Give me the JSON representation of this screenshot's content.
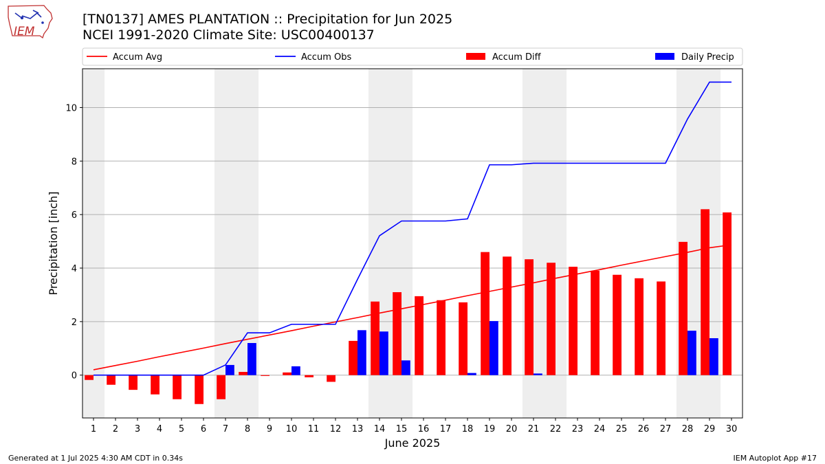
{
  "header": {
    "title_line1": "[TN0137] AMES PLANTATION :: Precipitation for Jun 2025",
    "title_line2": "NCEI 1991-2020 Climate Site: USC00400137"
  },
  "logo": {
    "text": "IEM",
    "icon": "iowa-state-outline-logo"
  },
  "footer": {
    "left": "Generated at 1 Jul 2025 4:30 AM CDT in 0.34s",
    "right": "IEM Autoplot App #17"
  },
  "chart_data": {
    "type": "bar",
    "title": "[TN0137] AMES PLANTATION :: Precipitation for Jun 2025",
    "subtitle": "NCEI 1991-2020 Climate Site: USC00400137",
    "xlabel": "June 2025",
    "ylabel": "Precipitation [inch]",
    "categories": [
      "1",
      "2",
      "3",
      "4",
      "5",
      "6",
      "7",
      "8",
      "9",
      "10",
      "11",
      "12",
      "13",
      "14",
      "15",
      "16",
      "17",
      "18",
      "19",
      "20",
      "21",
      "22",
      "23",
      "24",
      "25",
      "26",
      "27",
      "28",
      "29",
      "30"
    ],
    "ylim": [
      -1.6,
      11.45
    ],
    "yticks": [
      0,
      2,
      4,
      6,
      8,
      10
    ],
    "grid": "horizontal",
    "weekend_shading": [
      [
        1,
        1
      ],
      [
        7,
        8
      ],
      [
        14,
        15
      ],
      [
        21,
        22
      ],
      [
        28,
        29
      ]
    ],
    "legend_position": "top",
    "series": [
      {
        "name": "Accum Avg",
        "kind": "line",
        "color": "#ff0000",
        "values": [
          0.2,
          0.36,
          0.52,
          0.69,
          0.85,
          1.01,
          1.18,
          1.34,
          1.5,
          1.66,
          1.83,
          1.99,
          2.15,
          2.32,
          2.48,
          2.64,
          2.8,
          2.97,
          3.13,
          3.29,
          3.45,
          3.62,
          3.78,
          3.94,
          4.11,
          4.27,
          4.43,
          4.59,
          4.76,
          4.87
        ]
      },
      {
        "name": "Accum Obs",
        "kind": "line",
        "color": "#0000ff",
        "values": [
          0,
          0,
          0,
          0,
          0,
          0,
          0.38,
          1.58,
          1.58,
          1.9,
          1.9,
          1.9,
          3.58,
          5.21,
          5.76,
          5.76,
          5.76,
          5.84,
          7.86,
          7.86,
          7.92,
          7.92,
          7.92,
          7.92,
          7.92,
          7.92,
          7.92,
          9.57,
          10.95,
          10.95
        ]
      },
      {
        "name": "Accum Diff",
        "kind": "bar",
        "color": "#ff0000",
        "values": [
          -0.18,
          -0.36,
          -0.55,
          -0.72,
          -0.9,
          -1.08,
          -0.9,
          0.12,
          -0.03,
          0.1,
          -0.08,
          -0.25,
          1.28,
          2.75,
          3.1,
          2.95,
          2.8,
          2.72,
          4.6,
          4.43,
          4.33,
          4.2,
          4.05,
          3.9,
          3.75,
          3.62,
          3.5,
          4.98,
          6.2,
          6.08
        ]
      },
      {
        "name": "Daily Precip",
        "kind": "bar",
        "color": "#0000ff",
        "values": [
          0,
          0,
          0,
          0,
          0,
          0,
          0.38,
          1.2,
          0,
          0.33,
          0,
          0,
          1.68,
          1.63,
          0.55,
          0,
          0,
          0.08,
          2.02,
          0,
          0.06,
          0,
          0,
          0,
          0,
          0,
          0,
          1.66,
          1.38,
          0
        ]
      }
    ]
  }
}
